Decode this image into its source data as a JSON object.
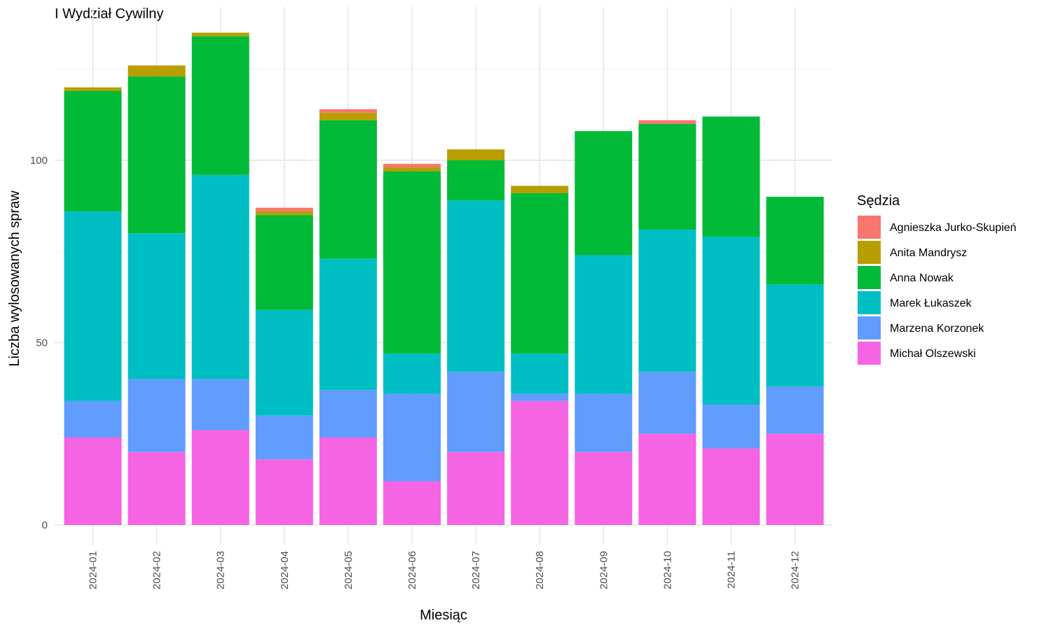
{
  "chart_data": {
    "type": "bar",
    "stacked": true,
    "title": "I Wydział Cywilny",
    "xlabel": "Miesiąc",
    "ylabel": "Liczba wylosowanych spraw",
    "ylim": [
      0,
      135
    ],
    "yticks": [
      0,
      50,
      100
    ],
    "grid": true,
    "legend_position": "right",
    "legend_title": "Sędzia",
    "categories": [
      "2024-01",
      "2024-02",
      "2024-03",
      "2024-04",
      "2024-05",
      "2024-06",
      "2024-07",
      "2024-08",
      "2024-09",
      "2024-10",
      "2024-11",
      "2024-12"
    ],
    "series": [
      {
        "name": "Michał Olszewski",
        "color": "#F564E3",
        "values": [
          24,
          20,
          26,
          18,
          24,
          12,
          20,
          34,
          20,
          25,
          21,
          25
        ]
      },
      {
        "name": "Marzena Korzonek",
        "color": "#619CFF",
        "values": [
          10,
          20,
          14,
          12,
          13,
          24,
          22,
          2,
          16,
          17,
          12,
          13
        ]
      },
      {
        "name": "Marek Łukaszek",
        "color": "#00BFC4",
        "values": [
          52,
          40,
          56,
          29,
          36,
          11,
          47,
          11,
          38,
          39,
          46,
          28
        ]
      },
      {
        "name": "Anna Nowak",
        "color": "#00BA38",
        "values": [
          33,
          43,
          38,
          26,
          38,
          50,
          11,
          44,
          34,
          29,
          33,
          24
        ]
      },
      {
        "name": "Anita Mandrysz",
        "color": "#B79F00",
        "values": [
          1,
          3,
          1,
          1,
          2,
          1,
          3,
          2,
          0,
          0,
          0,
          0
        ]
      },
      {
        "name": "Agnieszka Jurko-Skupień",
        "color": "#F8766D",
        "values": [
          0,
          0,
          0,
          1,
          1,
          1,
          0,
          0,
          0,
          1,
          0,
          0
        ]
      }
    ],
    "legend_order": [
      "Agnieszka Jurko-Skupień",
      "Anita Mandrysz",
      "Anna Nowak",
      "Marek Łukaszek",
      "Marzena Korzonek",
      "Michał Olszewski"
    ]
  }
}
